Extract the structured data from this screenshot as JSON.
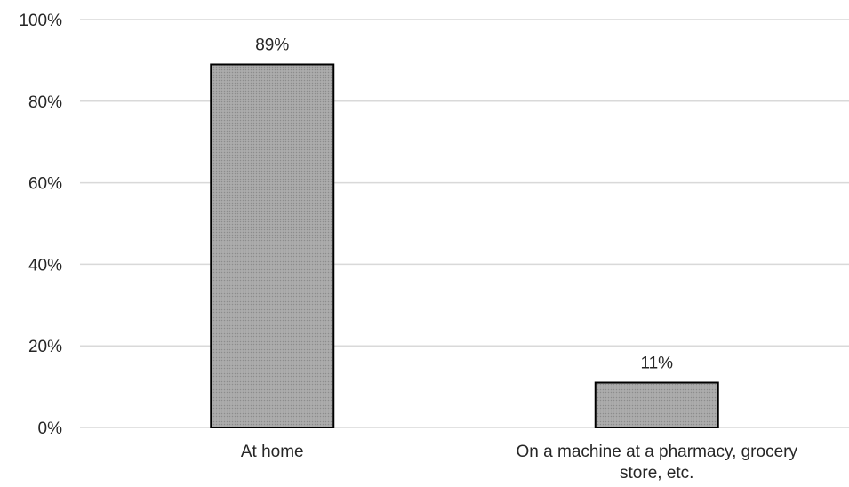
{
  "chart_data": {
    "type": "bar",
    "title": "",
    "xlabel": "",
    "ylabel": "",
    "categories": [
      "At home",
      "On a machine at a pharmacy, grocery store, etc."
    ],
    "category_label_lines": [
      [
        "At home"
      ],
      [
        "On a machine at a pharmacy, grocery",
        "store, etc."
      ]
    ],
    "values": [
      89,
      11
    ],
    "data_labels": [
      "89%",
      "11%"
    ],
    "ylim": [
      0,
      100
    ],
    "yticks": [
      0,
      20,
      40,
      60,
      80,
      100
    ],
    "ytick_labels": [
      "0%",
      "20%",
      "40%",
      "60%",
      "80%",
      "100%"
    ],
    "grid": true,
    "legend": "none",
    "colors": {
      "bar_fill": "#a6a6a6",
      "bar_stroke": "#000000",
      "grid": "#d9d9d9",
      "text": "#262626"
    }
  }
}
